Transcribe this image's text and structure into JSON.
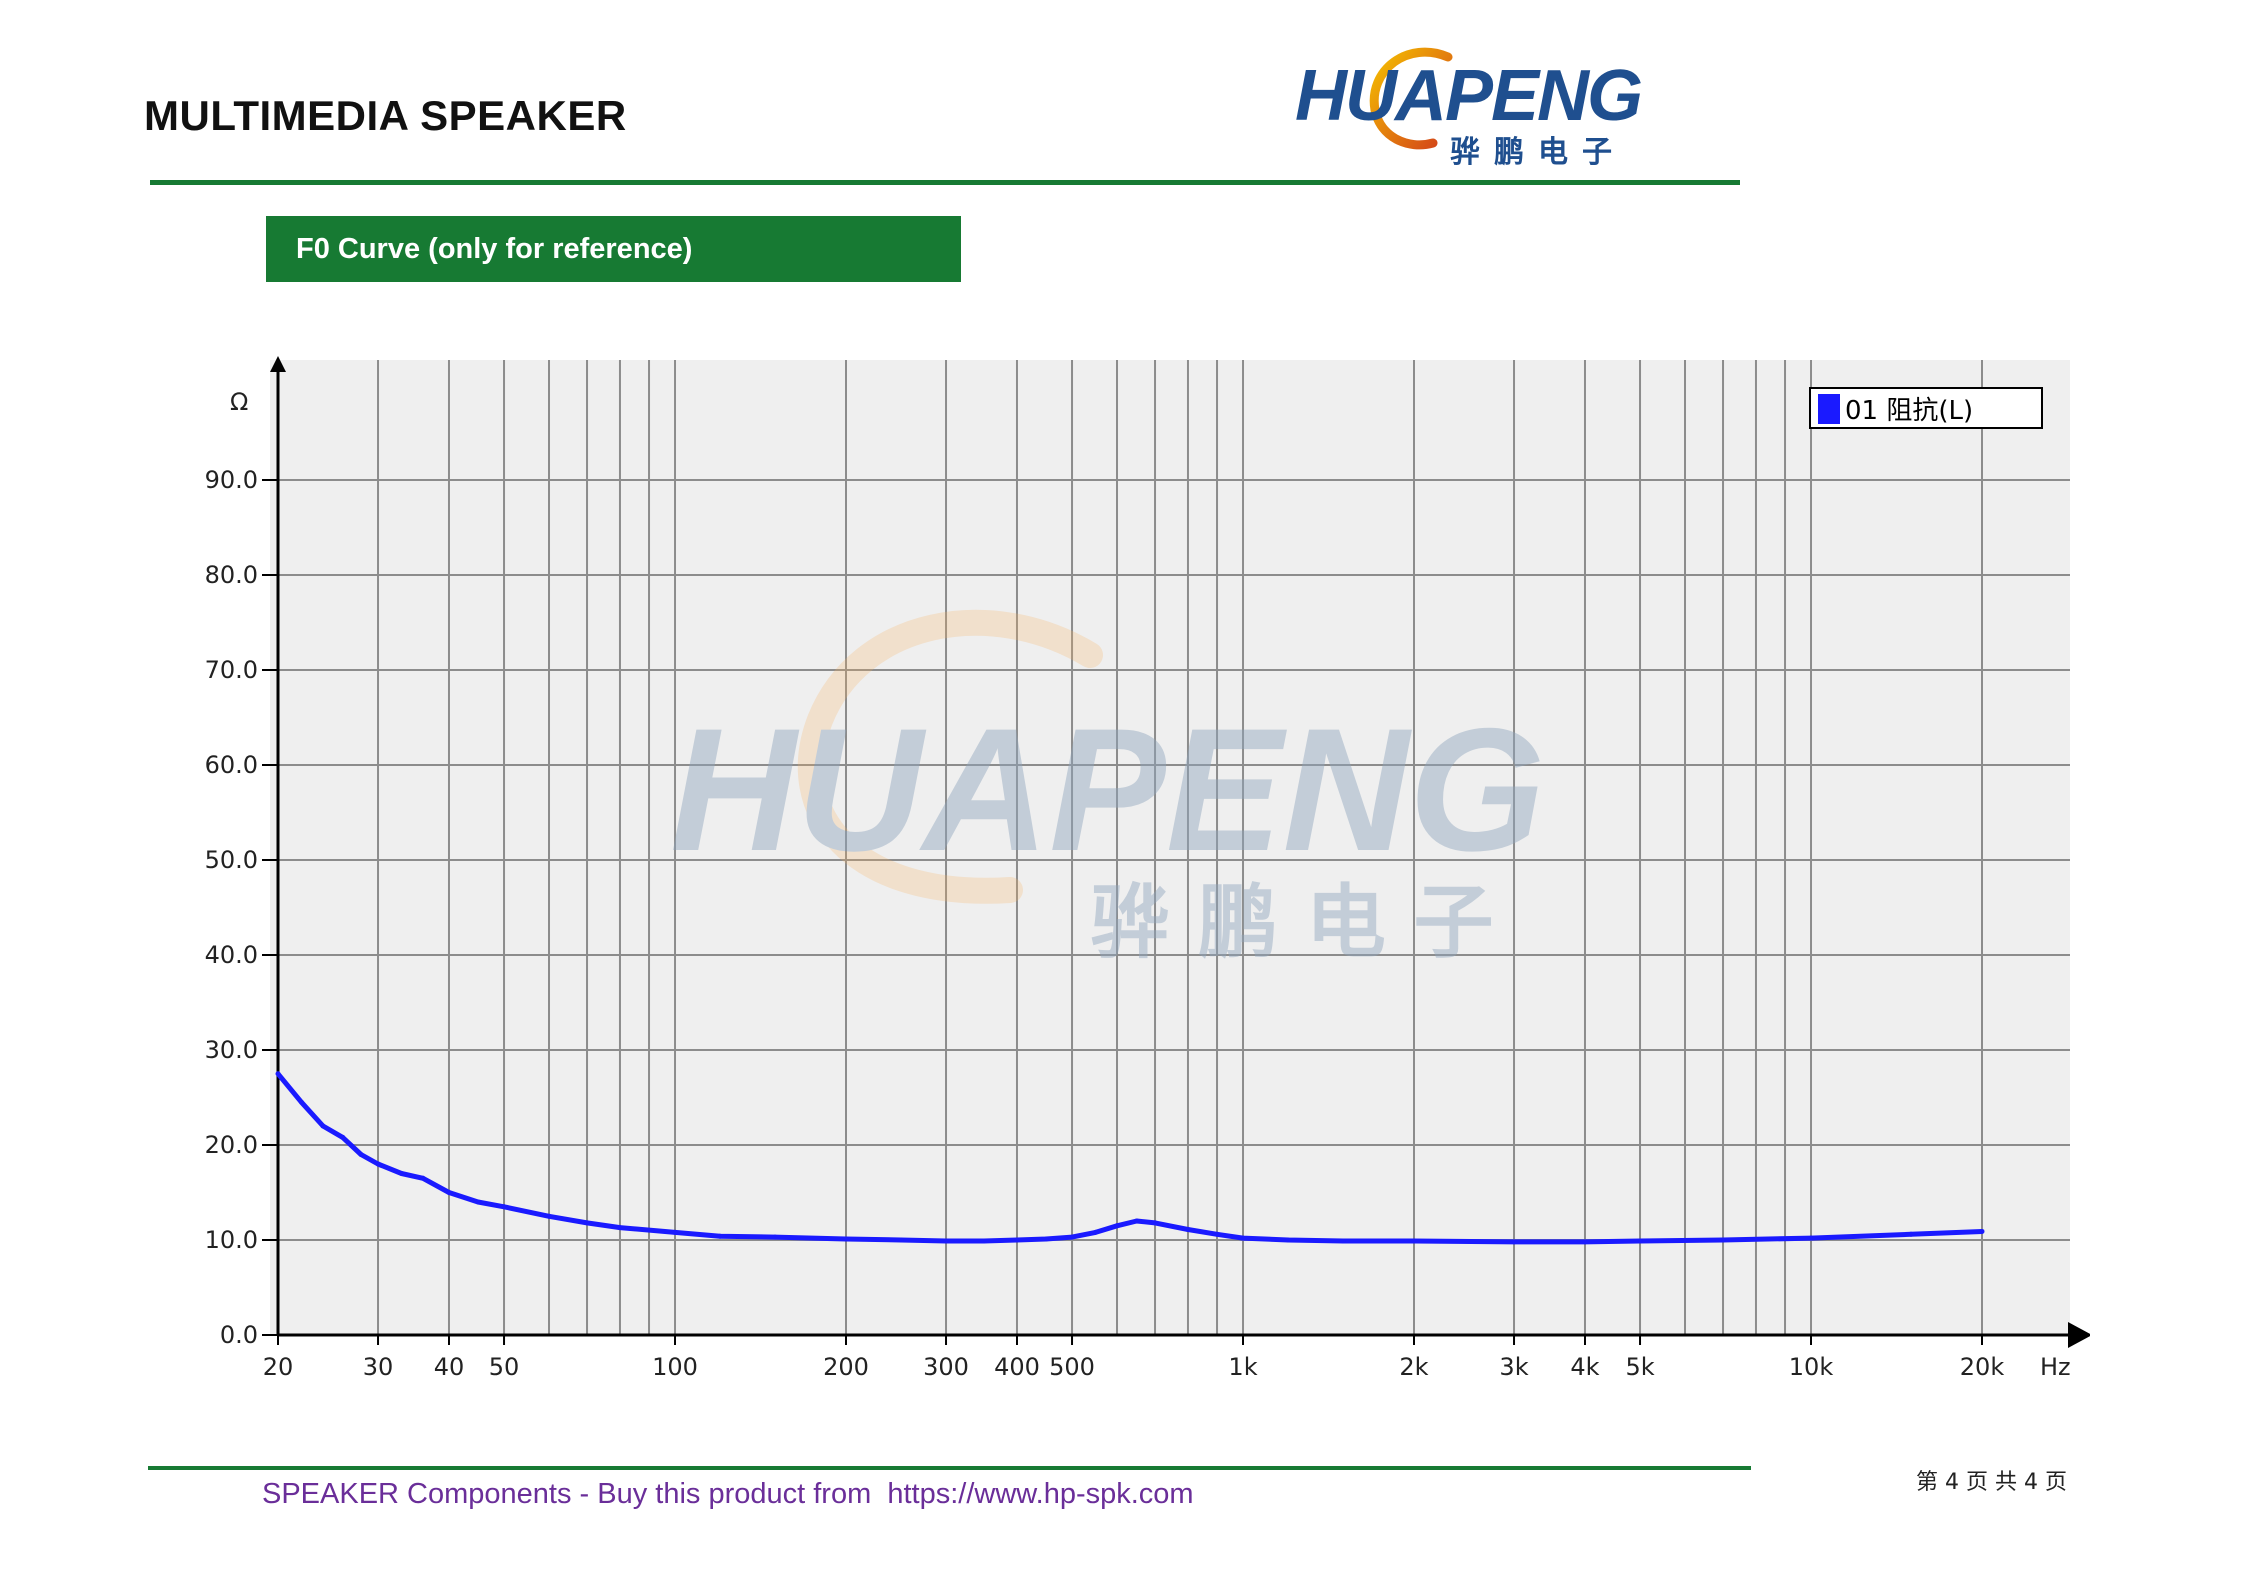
{
  "header": {
    "title": "MULTIMEDIA SPEAKER",
    "logo_text": "HUAPENG",
    "logo_subtext": "骅鹏电子"
  },
  "section": {
    "label": "F0 Curve (only for reference)"
  },
  "watermark": {
    "text": "HUAPENG",
    "subtext": "骅 鹏 电 子"
  },
  "chart_data": {
    "type": "line",
    "x_scale": "log",
    "xlim": [
      20,
      20000
    ],
    "ylim": [
      0,
      100
    ],
    "xlabel": "Hz",
    "ylabel": "Ω",
    "grid": true,
    "legend_position": "top-right",
    "x_ticks": [
      {
        "value": 20,
        "label": "20"
      },
      {
        "value": 30,
        "label": "30"
      },
      {
        "value": 40,
        "label": "40"
      },
      {
        "value": 50,
        "label": "50"
      },
      {
        "value": 100,
        "label": "100"
      },
      {
        "value": 200,
        "label": "200"
      },
      {
        "value": 300,
        "label": "300"
      },
      {
        "value": 400,
        "label": "400"
      },
      {
        "value": 500,
        "label": "500"
      },
      {
        "value": 1000,
        "label": "1k"
      },
      {
        "value": 2000,
        "label": "2k"
      },
      {
        "value": 3000,
        "label": "3k"
      },
      {
        "value": 4000,
        "label": "4k"
      },
      {
        "value": 5000,
        "label": "5k"
      },
      {
        "value": 10000,
        "label": "10k"
      },
      {
        "value": 20000,
        "label": "20k"
      }
    ],
    "y_ticks": [
      {
        "value": 0,
        "label": "0.0"
      },
      {
        "value": 10,
        "label": "10.0"
      },
      {
        "value": 20,
        "label": "20.0"
      },
      {
        "value": 30,
        "label": "30.0"
      },
      {
        "value": 40,
        "label": "40.0"
      },
      {
        "value": 50,
        "label": "50.0"
      },
      {
        "value": 60,
        "label": "60.0"
      },
      {
        "value": 70,
        "label": "70.0"
      },
      {
        "value": 80,
        "label": "80.0"
      },
      {
        "value": 90,
        "label": "90.0"
      }
    ],
    "series": [
      {
        "name": "01 阻抗(L)",
        "color": "#1a1aff",
        "x": [
          20,
          22,
          24,
          26,
          28,
          30,
          33,
          36,
          40,
          45,
          50,
          60,
          70,
          80,
          100,
          120,
          150,
          200,
          250,
          300,
          350,
          400,
          450,
          500,
          550,
          600,
          650,
          700,
          800,
          900,
          1000,
          1200,
          1500,
          2000,
          3000,
          4000,
          5000,
          7000,
          10000,
          15000,
          20000
        ],
        "y": [
          27.5,
          24.5,
          22.0,
          20.8,
          19.0,
          18.0,
          17.0,
          16.5,
          15.0,
          14.0,
          13.5,
          12.5,
          11.8,
          11.3,
          10.8,
          10.4,
          10.3,
          10.1,
          10.0,
          9.9,
          9.9,
          10.0,
          10.1,
          10.3,
          10.8,
          11.5,
          12.0,
          11.8,
          11.1,
          10.6,
          10.2,
          10.0,
          9.9,
          9.9,
          9.8,
          9.8,
          9.9,
          10.0,
          10.2,
          10.6,
          10.9
        ]
      }
    ]
  },
  "footer": {
    "link_text": "SPEAKER Components - Buy this product from  https://www.hp-spk.com",
    "page_indicator": "第 4 页 共 4 页"
  }
}
